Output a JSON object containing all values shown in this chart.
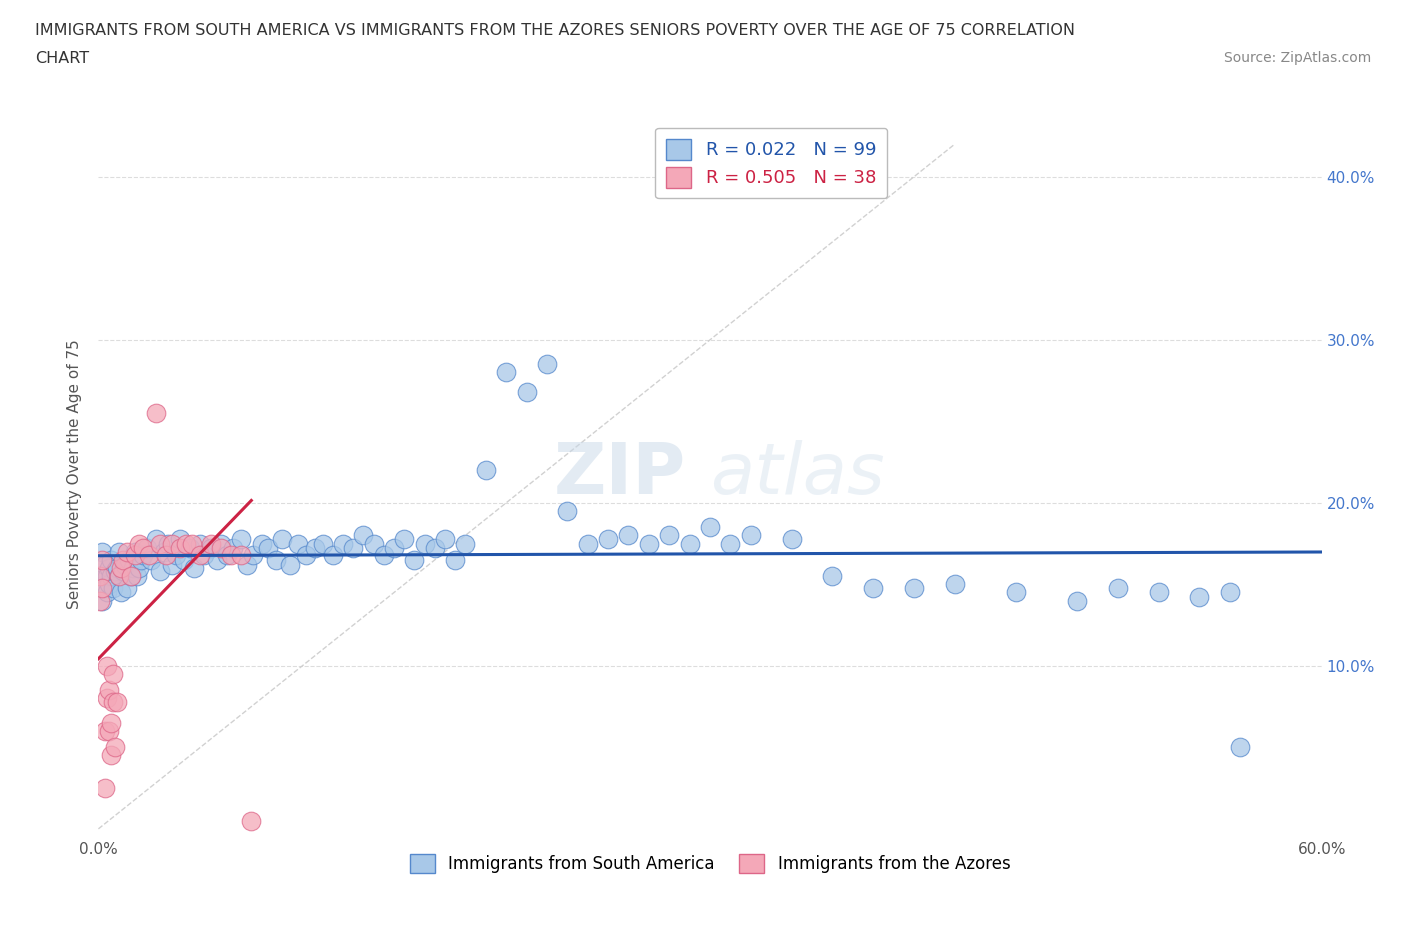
{
  "title_line1": "IMMIGRANTS FROM SOUTH AMERICA VS IMMIGRANTS FROM THE AZORES SENIORS POVERTY OVER THE AGE OF 75 CORRELATION",
  "title_line2": "CHART",
  "source_text": "Source: ZipAtlas.com",
  "ylabel": "Seniors Poverty Over the Age of 75",
  "xlim": [
    0.0,
    0.6
  ],
  "ylim": [
    -0.005,
    0.44
  ],
  "xticks": [
    0.0,
    0.6
  ],
  "xticklabels": [
    "0.0%",
    "60.0%"
  ],
  "yticks_left": [],
  "yticks_right": [
    0.1,
    0.2,
    0.3,
    0.4
  ],
  "yticklabels_right": [
    "10.0%",
    "20.0%",
    "30.0%",
    "40.0%"
  ],
  "blue_color": "#a8c8e8",
  "pink_color": "#f4a8b8",
  "blue_edge": "#5588cc",
  "pink_edge": "#dd6688",
  "trend_blue": "#2255aa",
  "trend_pink": "#cc2244",
  "ref_line_color": "#cccccc",
  "r_blue": 0.022,
  "n_blue": 99,
  "r_pink": 0.505,
  "n_pink": 38,
  "legend_label_blue": "Immigrants from South America",
  "legend_label_pink": "Immigrants from the Azores",
  "blue_scatter_x": [
    0.001,
    0.002,
    0.002,
    0.003,
    0.003,
    0.004,
    0.004,
    0.005,
    0.005,
    0.006,
    0.006,
    0.007,
    0.008,
    0.009,
    0.01,
    0.01,
    0.011,
    0.012,
    0.013,
    0.014,
    0.015,
    0.016,
    0.017,
    0.018,
    0.019,
    0.02,
    0.021,
    0.022,
    0.024,
    0.026,
    0.028,
    0.03,
    0.032,
    0.034,
    0.036,
    0.038,
    0.04,
    0.042,
    0.045,
    0.047,
    0.05,
    0.052,
    0.055,
    0.058,
    0.06,
    0.063,
    0.066,
    0.07,
    0.073,
    0.076,
    0.08,
    0.083,
    0.087,
    0.09,
    0.094,
    0.098,
    0.102,
    0.106,
    0.11,
    0.115,
    0.12,
    0.125,
    0.13,
    0.135,
    0.14,
    0.145,
    0.15,
    0.155,
    0.16,
    0.165,
    0.17,
    0.175,
    0.18,
    0.19,
    0.2,
    0.21,
    0.22,
    0.23,
    0.24,
    0.25,
    0.26,
    0.27,
    0.28,
    0.29,
    0.3,
    0.31,
    0.32,
    0.34,
    0.36,
    0.38,
    0.4,
    0.42,
    0.45,
    0.48,
    0.5,
    0.52,
    0.54,
    0.555,
    0.56
  ],
  "blue_scatter_y": [
    0.155,
    0.14,
    0.17,
    0.148,
    0.162,
    0.155,
    0.145,
    0.16,
    0.15,
    0.155,
    0.165,
    0.148,
    0.158,
    0.16,
    0.155,
    0.17,
    0.145,
    0.158,
    0.162,
    0.148,
    0.165,
    0.155,
    0.16,
    0.17,
    0.155,
    0.16,
    0.165,
    0.168,
    0.172,
    0.165,
    0.178,
    0.158,
    0.17,
    0.175,
    0.162,
    0.168,
    0.178,
    0.165,
    0.172,
    0.16,
    0.175,
    0.168,
    0.172,
    0.165,
    0.175,
    0.168,
    0.172,
    0.178,
    0.162,
    0.168,
    0.175,
    0.172,
    0.165,
    0.178,
    0.162,
    0.175,
    0.168,
    0.172,
    0.175,
    0.168,
    0.175,
    0.172,
    0.18,
    0.175,
    0.168,
    0.172,
    0.178,
    0.165,
    0.175,
    0.172,
    0.178,
    0.165,
    0.175,
    0.22,
    0.28,
    0.268,
    0.285,
    0.195,
    0.175,
    0.178,
    0.18,
    0.175,
    0.18,
    0.175,
    0.185,
    0.175,
    0.18,
    0.178,
    0.155,
    0.148,
    0.148,
    0.15,
    0.145,
    0.14,
    0.148,
    0.145,
    0.142,
    0.145,
    0.05
  ],
  "pink_scatter_x": [
    0.001,
    0.001,
    0.002,
    0.002,
    0.003,
    0.003,
    0.004,
    0.004,
    0.005,
    0.005,
    0.006,
    0.006,
    0.007,
    0.007,
    0.008,
    0.009,
    0.01,
    0.011,
    0.012,
    0.014,
    0.016,
    0.018,
    0.02,
    0.022,
    0.025,
    0.028,
    0.03,
    0.033,
    0.036,
    0.04,
    0.043,
    0.046,
    0.05,
    0.055,
    0.06,
    0.065,
    0.07,
    0.075
  ],
  "pink_scatter_y": [
    0.155,
    0.14,
    0.165,
    0.148,
    0.025,
    0.06,
    0.08,
    0.1,
    0.06,
    0.085,
    0.045,
    0.065,
    0.078,
    0.095,
    0.05,
    0.078,
    0.155,
    0.16,
    0.165,
    0.17,
    0.155,
    0.168,
    0.175,
    0.172,
    0.168,
    0.255,
    0.175,
    0.168,
    0.175,
    0.172,
    0.175,
    0.175,
    0.168,
    0.175,
    0.172,
    0.168,
    0.168,
    0.005
  ],
  "watermark_zip": "ZIP",
  "watermark_atlas": "atlas",
  "bg_color": "#ffffff",
  "grid_color": "#dddddd",
  "hgrid_color": "#dddddd"
}
